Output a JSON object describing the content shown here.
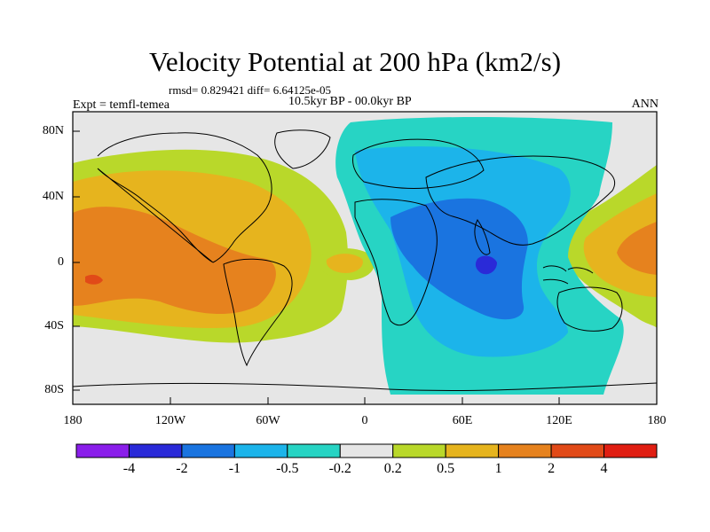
{
  "title": "Velocity Potential at 200 hPa (km2/s)",
  "stats": "rmsd= 0.829421  diff= 6.64125e-05",
  "period": "10.5kyr BP - 00.0kyr BP",
  "expt": "Expt = temfl-temea",
  "season": "ANN",
  "lat_labels": [
    "80N",
    "40N",
    "0",
    "40S",
    "80S"
  ],
  "lon_labels": [
    "180",
    "120W",
    "60W",
    "0",
    "60E",
    "120E",
    "180"
  ],
  "colorbar": {
    "labels": [
      "-4",
      "-2",
      "-1",
      "-0.5",
      "-0.2",
      "0.2",
      "0.5",
      "1",
      "2",
      "4"
    ],
    "colors": [
      "#8a1eea",
      "#2a2ad8",
      "#1a74e0",
      "#1cb4ea",
      "#27d4c4",
      "#e6e6e6",
      "#b9d82a",
      "#e6b41e",
      "#e6821e",
      "#e14a18",
      "#e01e12"
    ]
  },
  "field_colors": {
    "neutral": "#e6e6e6",
    "pos_0_2": "#b9d82a",
    "pos_0_5": "#e6b41e",
    "pos_1": "#e6821e",
    "pos_2": "#e14a18",
    "neg_0_2": "#27d4c4",
    "neg_0_5": "#1cb4ea",
    "neg_1": "#1a74e0",
    "neg_2": "#2a2ad8"
  }
}
